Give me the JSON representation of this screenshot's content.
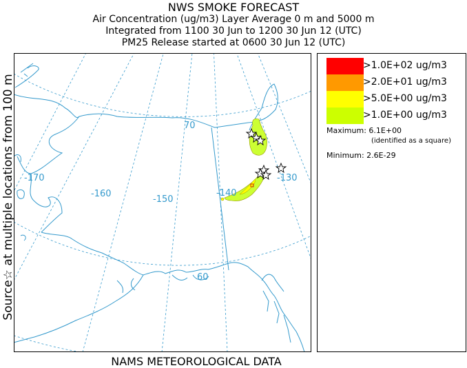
{
  "title": {
    "line1": "NWS SMOKE FORECAST",
    "line2": "Air Concentration (ug/m3) Layer Average    0 m and  5000 m",
    "line3": "Integrated from 1100 30 Jun to 1200 30 Jun 12 (UTC)",
    "line4": "PM25 Release started at 0600 30 Jun 12 (UTC)"
  },
  "side_label": "Source☆ at multiple locations   from   100 m",
  "bottom_label": "NAMS METEOROLOGICAL DATA",
  "legend": {
    "items": [
      {
        "label": ">1.0E+02 ug/m3",
        "color": "#ff0000"
      },
      {
        "label": ">2.0E+01 ug/m3",
        "color": "#ff9900"
      },
      {
        "label": ">5.0E+00 ug/m3",
        "color": "#ffff00"
      },
      {
        "label": ">1.0E+00 ug/m3",
        "color": "#ccff00"
      }
    ],
    "maximum": "Maximum: 6.1E+00",
    "maximum_note": "(identified as a square)",
    "minimum": "Minimum: 2.6E-29"
  },
  "map": {
    "longitude_labels": [
      "-170",
      "-160",
      "-150",
      "-140",
      "-130"
    ],
    "latitude_labels": [
      "70",
      "60"
    ],
    "colors": {
      "coast": "#3399cc",
      "grid": "#3399cc",
      "plume_outer": "#ccff33",
      "plume_inner": "#ffff00"
    }
  }
}
